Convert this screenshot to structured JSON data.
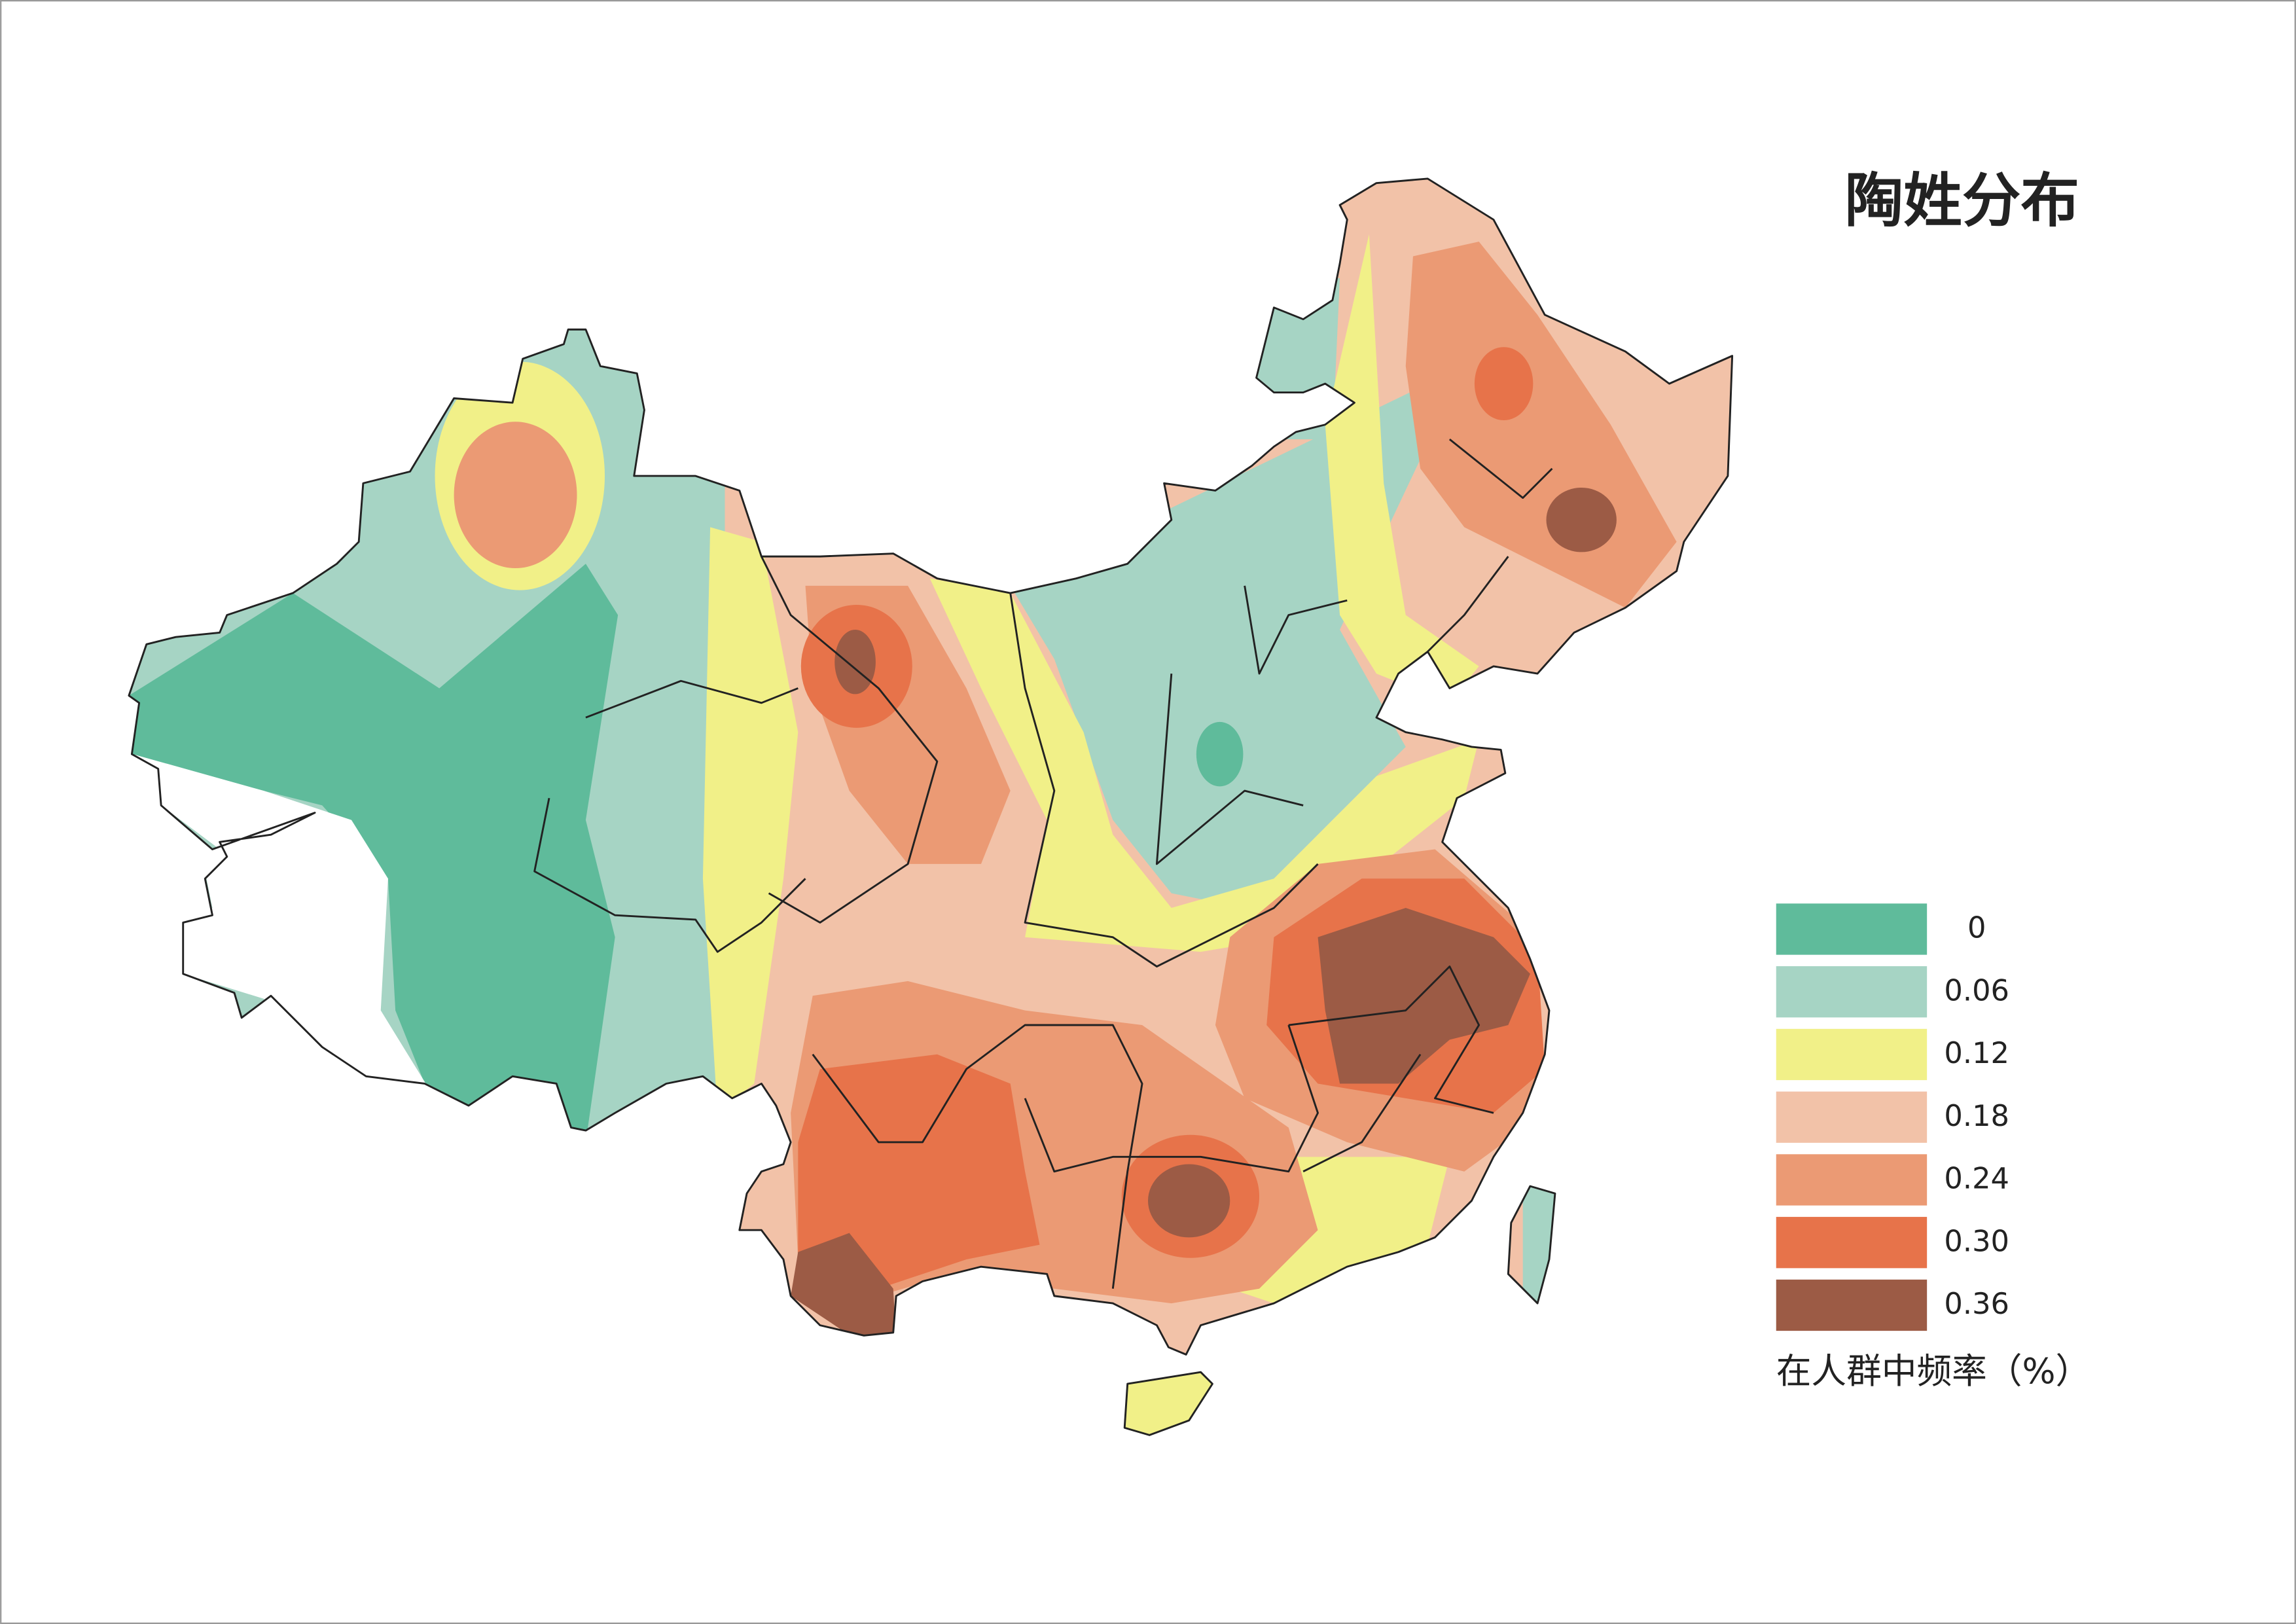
{
  "title": "陶姓分布",
  "legend": {
    "items": [
      {
        "label": "0",
        "color": "#5fbb9b"
      },
      {
        "label": "0.06",
        "color": "#a6d4c4"
      },
      {
        "label": "0.12",
        "color": "#f1f088"
      },
      {
        "label": "0.18",
        "color": "#f2c2a8"
      },
      {
        "label": "0.24",
        "color": "#eb9a74"
      },
      {
        "label": "0.30",
        "color": "#e7734a"
      },
      {
        "label": "0.36",
        "color": "#9c5b45"
      }
    ],
    "caption": "在人群中频率（%）"
  }
}
